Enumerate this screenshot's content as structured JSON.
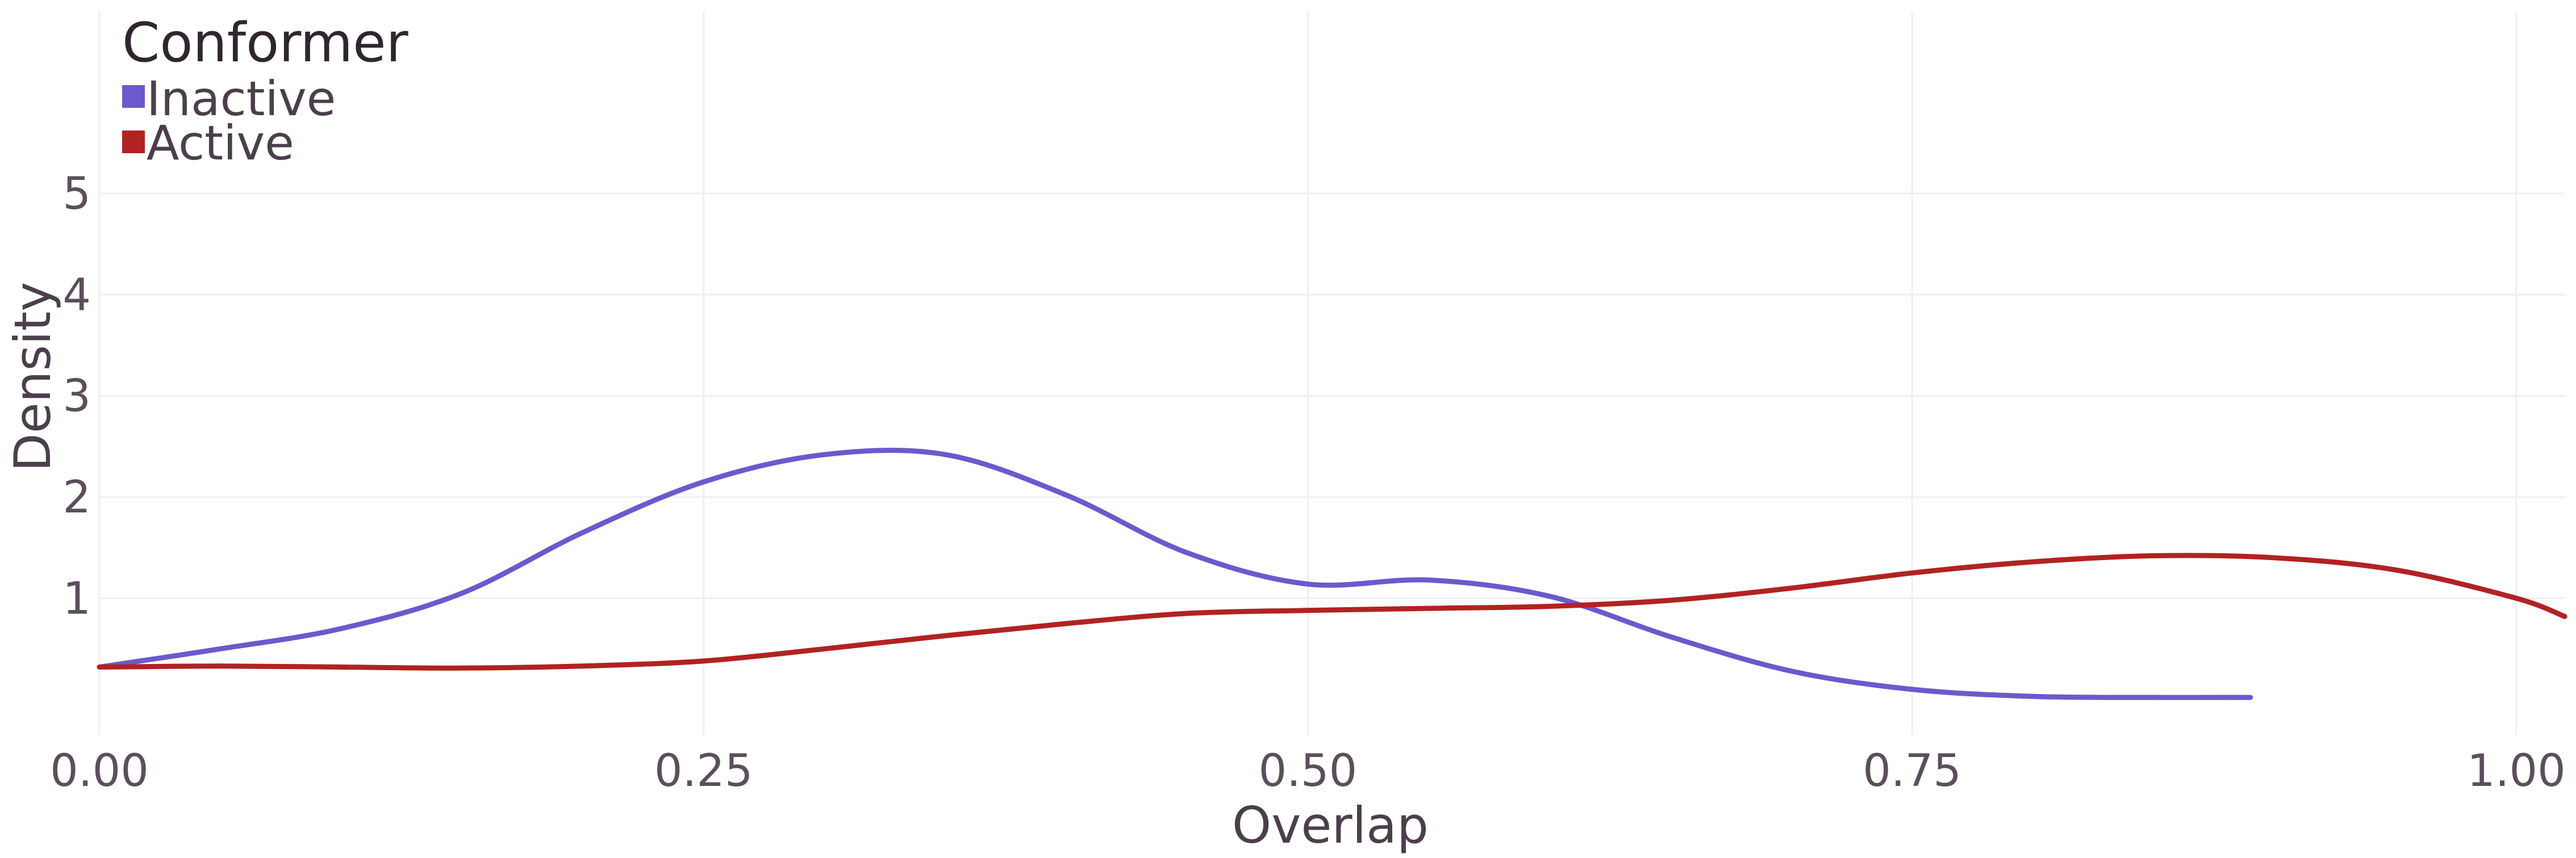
{
  "chart_data": {
    "type": "line",
    "xlabel": "Overlap",
    "ylabel": "Density",
    "xlim": [
      0,
      1.02
    ],
    "ylim": [
      -0.35,
      6.8
    ],
    "x_ticks": [
      "0.00",
      "0.25",
      "0.50",
      "0.75",
      "1.00"
    ],
    "x_tick_values": [
      0,
      0.25,
      0.5,
      0.75,
      1.0
    ],
    "y_ticks": [
      "1",
      "2",
      "3",
      "4",
      "5"
    ],
    "y_tick_values": [
      1,
      2,
      3,
      4,
      5
    ],
    "grid": true,
    "legend": {
      "title": "Conformer",
      "position": "top-left",
      "entries": [
        {
          "label": "Inactive",
          "color": "#6a5acd"
        },
        {
          "label": "Active",
          "color": "#b22222"
        }
      ]
    },
    "series": [
      {
        "name": "Inactive",
        "color": "#6a5acd",
        "x": [
          0.0,
          0.05,
          0.1,
          0.15,
          0.2,
          0.25,
          0.3,
          0.35,
          0.4,
          0.45,
          0.5,
          0.55,
          0.6,
          0.65,
          0.7,
          0.75,
          0.8,
          0.85,
          0.89
        ],
        "y": [
          0.32,
          0.5,
          0.7,
          1.05,
          1.65,
          2.15,
          2.42,
          2.42,
          2.02,
          1.45,
          1.14,
          1.18,
          1.02,
          0.62,
          0.28,
          0.1,
          0.03,
          0.02,
          0.02
        ]
      },
      {
        "name": "Active",
        "color": "#b22222",
        "x": [
          0.0,
          0.05,
          0.1,
          0.15,
          0.2,
          0.25,
          0.3,
          0.35,
          0.4,
          0.45,
          0.5,
          0.55,
          0.6,
          0.65,
          0.7,
          0.75,
          0.8,
          0.85,
          0.9,
          0.95,
          1.0,
          1.02
        ],
        "y": [
          0.32,
          0.33,
          0.32,
          0.31,
          0.33,
          0.38,
          0.5,
          0.63,
          0.75,
          0.85,
          0.88,
          0.9,
          0.92,
          0.98,
          1.1,
          1.25,
          1.36,
          1.42,
          1.4,
          1.28,
          1.0,
          0.82
        ]
      }
    ]
  }
}
